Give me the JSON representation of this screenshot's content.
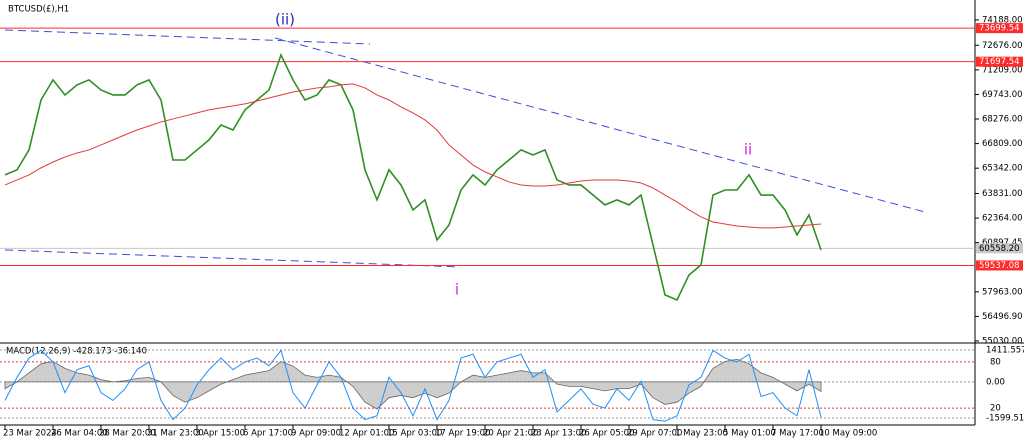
{
  "chart_data": [
    {
      "type": "line",
      "title": "BTCUSD(£),H1",
      "annotations": [
        "(ii)",
        "ii",
        "i"
      ],
      "categories": [
        "23 Mar 2024",
        null,
        null,
        null,
        "26 Mar 04:00",
        null,
        null,
        null,
        "28 Mar 20:00",
        null,
        null,
        null,
        "31 Mar 23:00",
        null,
        null,
        null,
        "3 Apr 15:00",
        null,
        null,
        null,
        "6 Apr 17:00",
        null,
        null,
        null,
        "9 Apr 09:00",
        null,
        null,
        null,
        "12 Apr 01:00",
        null,
        null,
        null,
        "15 Apr 03:00",
        null,
        null,
        null,
        "17 Apr 19:00",
        null,
        null,
        null,
        "20 Apr 21:00",
        null,
        null,
        null,
        "23 Apr 13:00",
        null,
        null,
        null,
        "26 Apr 05:00",
        null,
        null,
        null,
        "29 Apr 07:00",
        null,
        null,
        null,
        "1 May 23:00",
        null,
        null,
        null,
        "5 May 01:00",
        null,
        null,
        null,
        "7 May 17:00",
        null,
        null,
        null,
        "10 May 09:00"
      ],
      "series": [
        {
          "color": "#2f8f25",
          "values": [
            64940,
            65240,
            66430,
            69410,
            70610,
            69710,
            70310,
            70610,
            70010,
            69710,
            69710,
            70310,
            70610,
            69410,
            65830,
            65830,
            66430,
            67030,
            67920,
            67620,
            68820,
            69410,
            70010,
            72100,
            70610,
            69410,
            69710,
            70610,
            70310,
            68820,
            65240,
            63450,
            65240,
            64340,
            62850,
            63450,
            61060,
            61950,
            64040,
            64940,
            64340,
            65240,
            65830,
            66430,
            66130,
            66430,
            64640,
            64340,
            64340,
            63740,
            63150,
            63450,
            63150,
            63740,
            60760,
            57780,
            57480,
            58970,
            59570,
            63740,
            64040,
            64040,
            64940,
            63740,
            63740,
            62850,
            61360,
            62550,
            60460
          ]
        },
        {
          "color": "#e23b3b",
          "values": [
            64340,
            64640,
            64940,
            65360,
            65710,
            66010,
            66250,
            66430,
            66730,
            67030,
            67330,
            67620,
            67860,
            68100,
            68280,
            68460,
            68640,
            68820,
            68940,
            69060,
            69180,
            69350,
            69530,
            69710,
            69890,
            70010,
            70130,
            70190,
            70310,
            70370,
            70130,
            69710,
            69410,
            69000,
            68640,
            68220,
            67620,
            66730,
            66130,
            65530,
            65120,
            64820,
            64520,
            64340,
            64280,
            64280,
            64340,
            64460,
            64580,
            64640,
            64640,
            64640,
            64580,
            64460,
            64160,
            63740,
            63330,
            62850,
            62430,
            62130,
            62010,
            61890,
            61830,
            61780,
            61780,
            61830,
            61890,
            61950,
            62010
          ]
        }
      ],
      "ylim": [
        54910,
        74900
      ],
      "yticks": [
        {
          "value": 74188,
          "label": "74188.00"
        },
        {
          "value": 72676,
          "label": "72676.00"
        },
        {
          "value": 71209,
          "label": "71209.00"
        },
        {
          "value": 69743,
          "label": "69743.00"
        },
        {
          "value": 68276,
          "label": "68276.00"
        },
        {
          "value": 66809,
          "label": "66809.00"
        },
        {
          "value": 65342,
          "label": "65342.00"
        },
        {
          "value": 63831,
          "label": "63831.00"
        },
        {
          "value": 62364,
          "label": "62364.00"
        },
        60897.45,
        {
          "value": 57963,
          "label": "57963.00"
        },
        {
          "value": 56496.9,
          "label": "56496.90"
        },
        {
          "value": 55030,
          "label": "55030.00"
        }
      ],
      "levels": [
        {
          "value": 73699.54,
          "color": "#ff2a2a"
        },
        {
          "value": 71697.54,
          "color": "#ff2a2a"
        },
        {
          "value": 60558.2,
          "label": "60558.20",
          "color": "#c8c8c8"
        },
        {
          "value": 59537.08,
          "color": "#ff2a2a"
        }
      ]
    },
    {
      "type": "macd",
      "title": "MACD(12,26,9) -428.173 -36.140",
      "color": "#b9b9b9",
      "values": [
        -300,
        0,
        400,
        800,
        900,
        600,
        400,
        300,
        100,
        0,
        50,
        150,
        200,
        0,
        -600,
        -900,
        -700,
        -400,
        -100,
        100,
        300,
        400,
        500,
        900,
        700,
        300,
        200,
        300,
        200,
        -200,
        -900,
        -1200,
        -700,
        -600,
        -700,
        -500,
        -700,
        -500,
        0,
        300,
        200,
        300,
        400,
        500,
        400,
        400,
        -100,
        -200,
        -200,
        -300,
        -400,
        -300,
        -300,
        -100,
        -700,
        -1000,
        -900,
        -500,
        -200,
        600,
        900,
        1000,
        800,
        400,
        200,
        -100,
        -400,
        -100,
        -428.173
      ],
      "ylim": [
        -1910,
        1633
      ],
      "yticks": [
        1411.557,
        {
          "value": 0,
          "label": "0.00"
        },
        -1599.516
      ],
      "y2lim": [
        -2,
        102
      ],
      "y2ticks": [
        80,
        20
      ],
      "series": [
        {
          "axis": "y2",
          "color": "#1e8fff",
          "values": [
            30,
            60,
            85,
            95,
            80,
            40,
            70,
            75,
            40,
            30,
            45,
            70,
            80,
            30,
            5,
            20,
            50,
            70,
            85,
            70,
            80,
            85,
            75,
            95,
            40,
            20,
            50,
            80,
            60,
            20,
            5,
            10,
            60,
            40,
            10,
            45,
            5,
            30,
            85,
            90,
            60,
            80,
            85,
            90,
            60,
            70,
            15,
            30,
            45,
            25,
            20,
            45,
            30,
            55,
            5,
            3,
            10,
            50,
            60,
            95,
            85,
            80,
            90,
            35,
            40,
            20,
            10,
            70,
            8
          ]
        }
      ]
    }
  ]
}
